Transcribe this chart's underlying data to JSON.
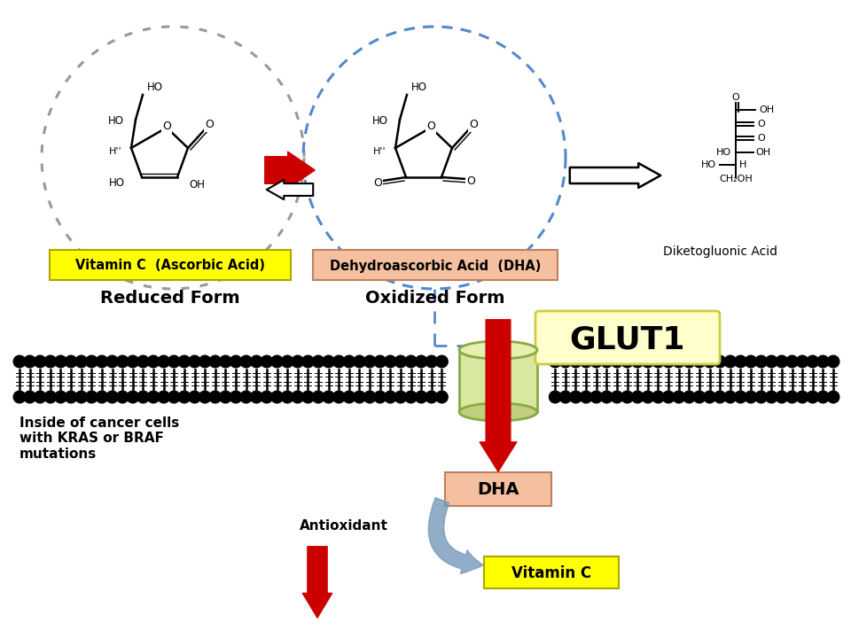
{
  "bg_color": "#ffffff",
  "vitc_label": "Vitamin C  (Ascorbic Acid)",
  "vitc_bg": "#ffff00",
  "dha_label": "Dehydroascorbic Acid  (DHA)",
  "dha_bg": "#f4c0a0",
  "reduced_label": "Reduced Form",
  "oxidized_label": "Oxidized Form",
  "diketogluconic_label": "Diketogluonic Acid",
  "glut1_label": "GLUT1",
  "glut1_bg": "#ffffcc",
  "dha_bottom_label": "DHA",
  "dha_bottom_bg": "#f4c0a0",
  "vitc_bottom_label": "Vitamin C",
  "vitc_bottom_bg": "#ffff00",
  "antioxidant_label": "Antioxidant",
  "inside_label": "Inside of cancer cells\nwith KRAS or BRAF\nmutations",
  "red_color": "#cc0000",
  "blue_color": "#7799bb",
  "gray_color": "#888888",
  "blue_circle_color": "#5588cc",
  "gray_circle_color": "#999999",
  "membrane_color": "#111111",
  "cyl_face": "#d8e8a0",
  "cyl_edge": "#88aa44",
  "cyl_top": "#e8f0b0",
  "cyl_bot": "#c0d080"
}
